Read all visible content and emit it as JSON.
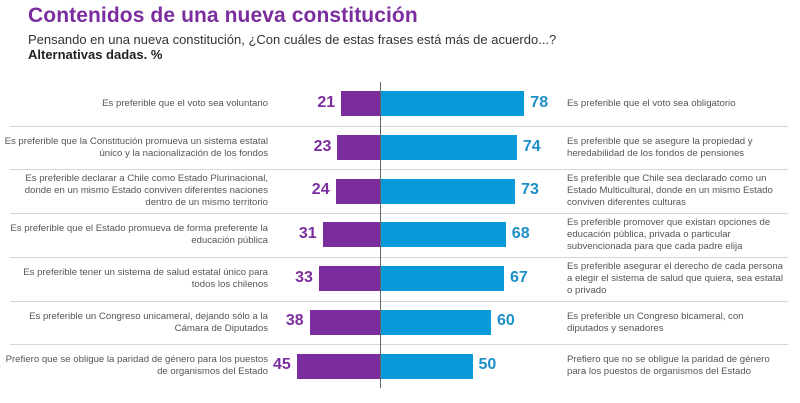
{
  "header": {
    "title": "Contenidos de una nueva constitución",
    "subtitle": "Pensando en una nueva constitución, ¿Con cuáles de estas frases está más de acuerdo...?",
    "subtitle_bold": "Alternativas dadas. %"
  },
  "colors": {
    "left": "#7b2d9e",
    "right": "#069bd8",
    "title": "#7b2d9e"
  },
  "chart_data": {
    "type": "bar",
    "orientation": "horizontal-diverging",
    "title": "Contenidos de una nueva constitución",
    "xlabel": "",
    "ylabel": "",
    "unit": "%",
    "xlim": [
      0,
      100
    ],
    "grid": false,
    "categories": [
      {
        "left_label": "Es preferible que el voto sea voluntario",
        "right_label": "Es preferible que el voto sea obligatorio"
      },
      {
        "left_label": "Es preferible que la Constitución promueva un sistema estatal único y la nacionalización de los fondos",
        "right_label": "Es preferible que se asegure la propiedad y heredabilidad de los fondos de pensiones"
      },
      {
        "left_label": "Es preferible declarar a Chile como Estado Plurinacional, donde en un mismo Estado conviven diferentes naciones dentro de un mismo territorio",
        "right_label": "Es preferible que Chile sea declarado como un Estado Multicultural, donde en un mismo Estado conviven diferentes culturas"
      },
      {
        "left_label": "Es preferible que el Estado promueva de forma preferente la educación pública",
        "right_label": "Es preferible promover que existan opciones de educación pública, privada o particular subvencionada para que cada padre elija"
      },
      {
        "left_label": "Es preferible tener un sistema de salud estatal único para todos los chilenos",
        "right_label": "Es preferible asegurar el derecho de cada persona a elegir el sistema de salud que quiera, sea estatal o privado"
      },
      {
        "left_label": "Es preferible un Congreso unicameral, dejando sólo a la Cámara de Diputados",
        "right_label": "Es preferible un Congreso bicameral, con diputados y senadores"
      },
      {
        "left_label": "Prefiero que se obligue la paridad de género para los puestos de organismos del Estado",
        "right_label": "Prefiero que no se obligue la paridad de género para los puestos de organismos del Estado"
      }
    ],
    "series": [
      {
        "name": "left",
        "values": [
          21,
          23,
          24,
          31,
          33,
          38,
          45
        ]
      },
      {
        "name": "right",
        "values": [
          78,
          74,
          73,
          68,
          67,
          60,
          50
        ]
      }
    ]
  }
}
